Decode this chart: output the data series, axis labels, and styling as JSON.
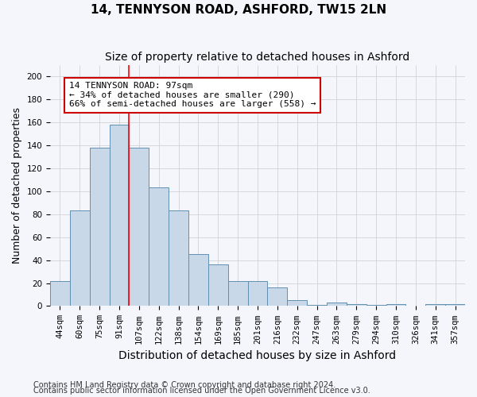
{
  "title": "14, TENNYSON ROAD, ASHFORD, TW15 2LN",
  "subtitle": "Size of property relative to detached houses in Ashford",
  "xlabel": "Distribution of detached houses by size in Ashford",
  "ylabel": "Number of detached properties",
  "categories": [
    "44sqm",
    "60sqm",
    "75sqm",
    "91sqm",
    "107sqm",
    "122sqm",
    "138sqm",
    "154sqm",
    "169sqm",
    "185sqm",
    "201sqm",
    "216sqm",
    "232sqm",
    "247sqm",
    "263sqm",
    "279sqm",
    "294sqm",
    "310sqm",
    "326sqm",
    "341sqm",
    "357sqm"
  ],
  "values": [
    22,
    83,
    138,
    158,
    138,
    103,
    83,
    45,
    36,
    22,
    22,
    16,
    5,
    1,
    3,
    2,
    1,
    2,
    0,
    2,
    2
  ],
  "bar_color": "#c8d8e8",
  "bar_edge_color": "#6090b0",
  "red_line_x": 3.5,
  "annotation_text": "14 TENNYSON ROAD: 97sqm\n← 34% of detached houses are smaller (290)\n66% of semi-detached houses are larger (558) →",
  "annotation_box_color": "#ffffff",
  "annotation_box_edgecolor": "#cc0000",
  "ylim": [
    0,
    210
  ],
  "yticks": [
    0,
    20,
    40,
    60,
    80,
    100,
    120,
    140,
    160,
    180,
    200
  ],
  "footer1": "Contains HM Land Registry data © Crown copyright and database right 2024.",
  "footer2": "Contains public sector information licensed under the Open Government Licence v3.0.",
  "bg_color": "#f4f6fb",
  "grid_color": "#cccccc",
  "title_fontsize": 11,
  "subtitle_fontsize": 10,
  "axis_label_fontsize": 9,
  "tick_fontsize": 7.5,
  "annotation_fontsize": 8,
  "footer_fontsize": 7
}
